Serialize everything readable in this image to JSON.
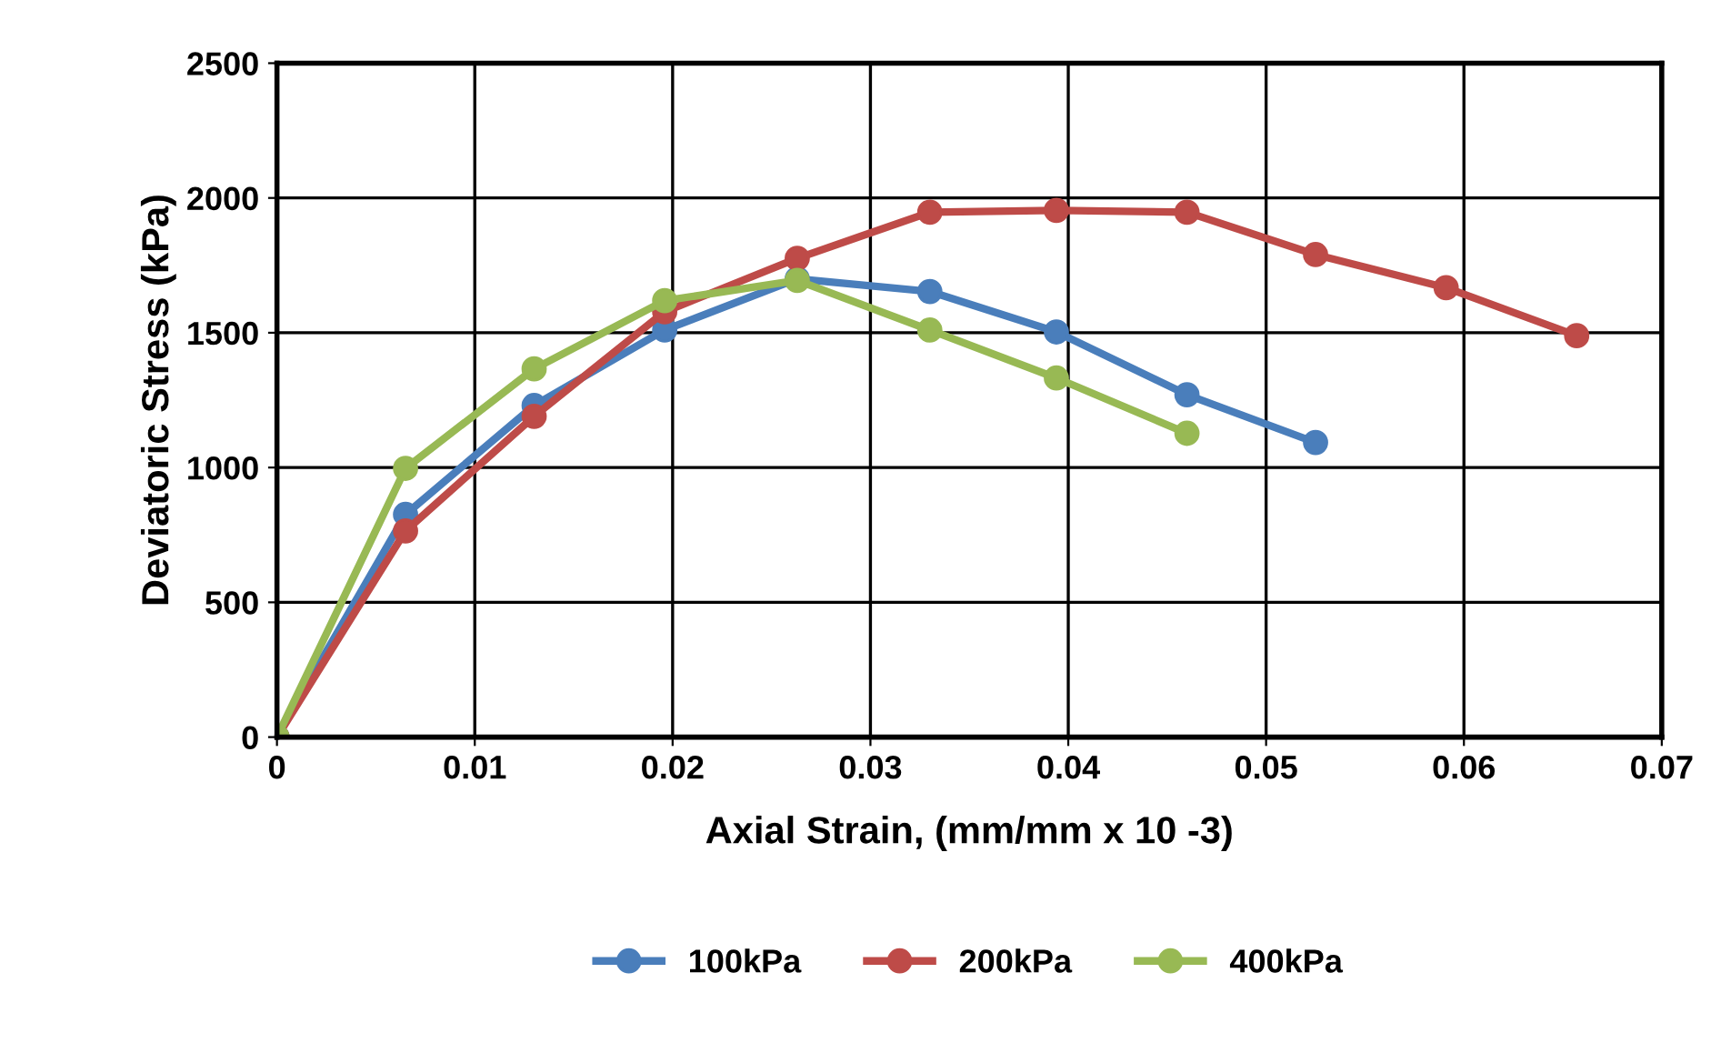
{
  "chart_data": {
    "type": "line",
    "xlabel": "Axial Strain, (mm/mm x 10 -3)",
    "ylabel": "Deviatoric Stress (kPa)",
    "xlim": [
      0,
      0.07
    ],
    "xticks": [
      0,
      0.01,
      0.02,
      0.03,
      0.04,
      0.05,
      0.06,
      0.07
    ],
    "ylim": [
      0,
      2500
    ],
    "yticks": [
      0,
      500,
      1000,
      1500,
      2000,
      2500
    ],
    "grid": true,
    "legend": "bottom",
    "marker": "circle",
    "line_style": "solid",
    "series": [
      {
        "name": "100kPa",
        "color": "#4a7ebb",
        "x": [
          0,
          0.0065,
          0.013,
          0.0196,
          0.0263,
          0.033,
          0.0394,
          0.046,
          0.0525
        ],
        "values": [
          0,
          826,
          1230,
          1510,
          1700,
          1653,
          1503,
          1270,
          1093
        ]
      },
      {
        "name": "200kPa",
        "color": "#be4b48",
        "x": [
          0,
          0.0065,
          0.013,
          0.0196,
          0.0263,
          0.033,
          0.0394,
          0.046,
          0.0525,
          0.0591,
          0.0657
        ],
        "values": [
          0,
          765,
          1190,
          1578,
          1776,
          1947,
          1954,
          1947,
          1790,
          1667,
          1489
        ]
      },
      {
        "name": "400kPa",
        "color": "#98b954",
        "x": [
          0,
          0.0065,
          0.013,
          0.0196,
          0.0263,
          0.033,
          0.0394,
          0.046
        ],
        "values": [
          0,
          997,
          1366,
          1619,
          1694,
          1510,
          1332,
          1127
        ]
      }
    ]
  }
}
